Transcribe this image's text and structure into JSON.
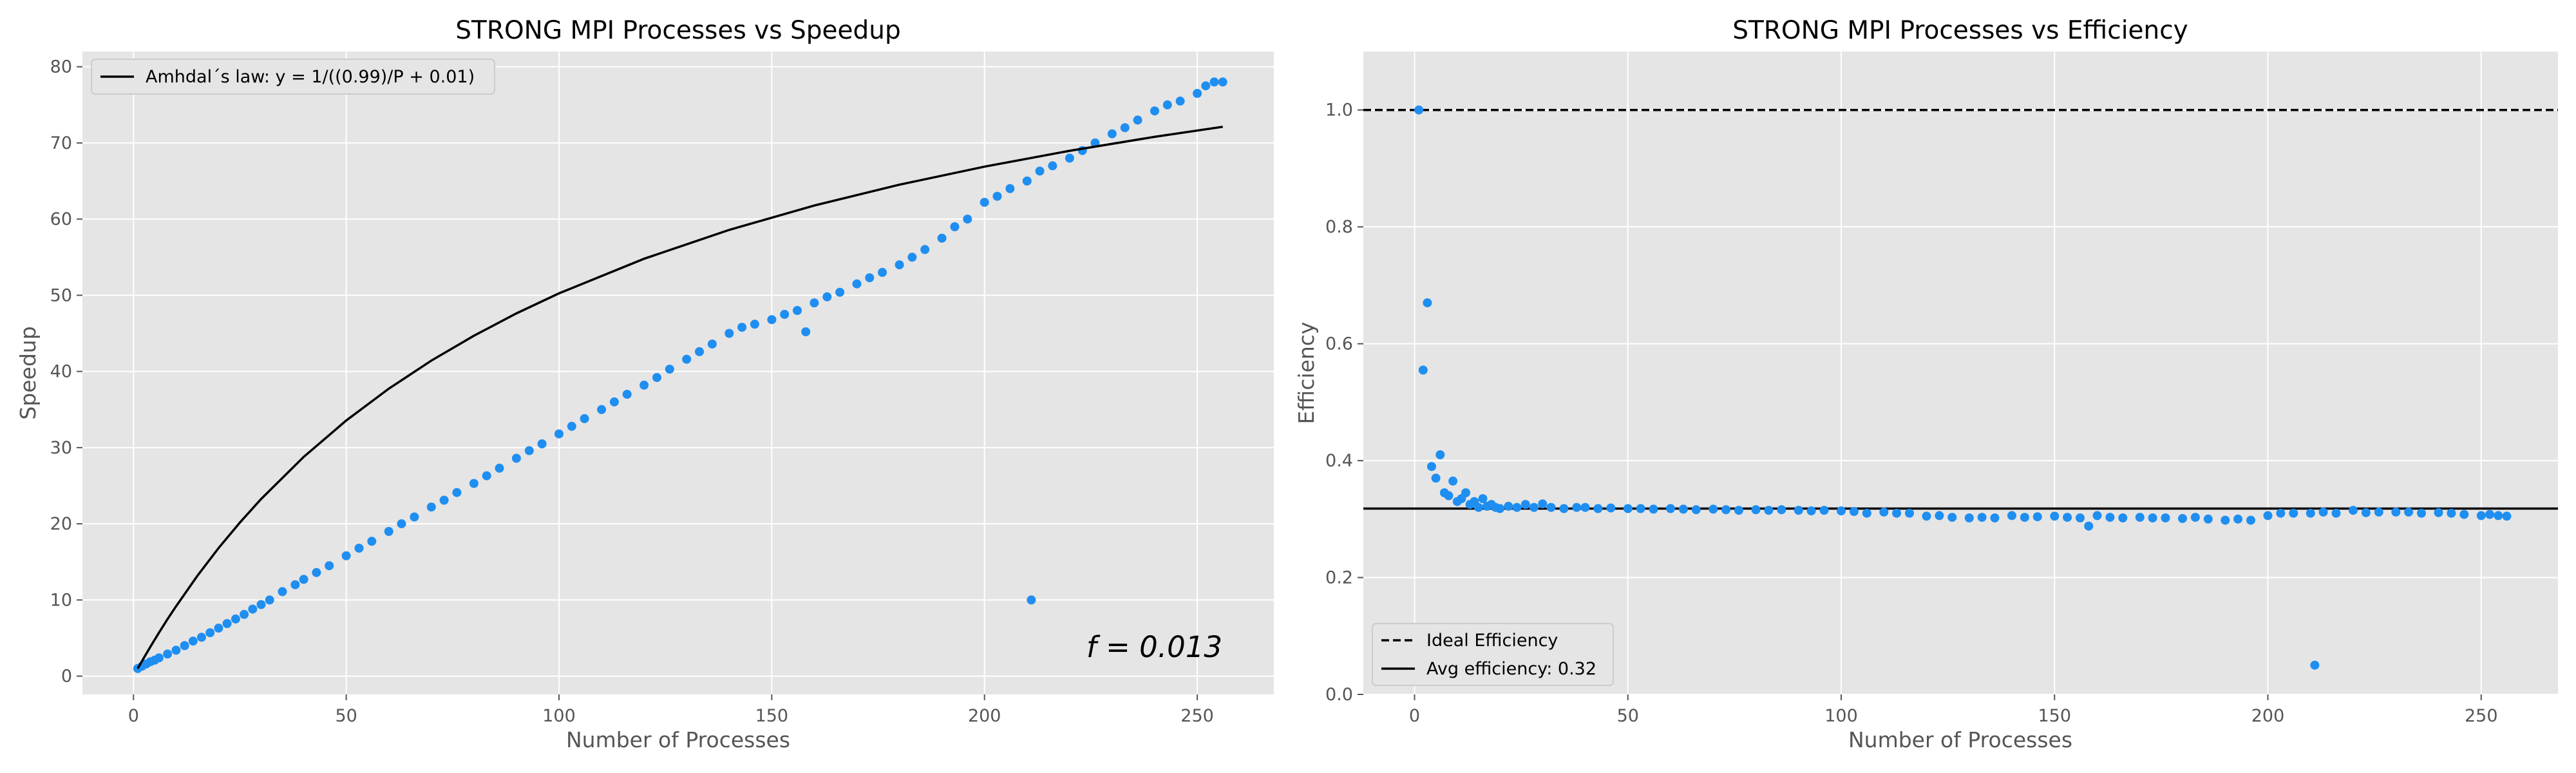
{
  "chart_data": [
    {
      "type": "scatter",
      "title": "STRONG MPI Processes vs Speedup",
      "xlabel": "Number of Processes",
      "ylabel": "Speedup",
      "xlim": [
        -12,
        268
      ],
      "ylim": [
        -2.4,
        82
      ],
      "xticks": [
        0,
        50,
        100,
        150,
        200,
        250
      ],
      "yticks": [
        0,
        10,
        20,
        30,
        40,
        50,
        60,
        70,
        80
      ],
      "grid": true,
      "legend": {
        "placement": "top-left",
        "entries": [
          {
            "label": "Amhdal´s law: y = 1/((0.99)/P + 0.01)",
            "style": "solid",
            "color": "#000000"
          }
        ]
      },
      "annotation": {
        "text": "f = 0.013",
        "placement": "bottom-right"
      },
      "series": [
        {
          "type": "scatter",
          "color": "#1f8ef1",
          "x": [
            1,
            2,
            3,
            4,
            5,
            6,
            8,
            10,
            12,
            14,
            16,
            18,
            20,
            22,
            24,
            26,
            28,
            30,
            32,
            35,
            38,
            40,
            43,
            46,
            50,
            53,
            56,
            60,
            63,
            66,
            70,
            73,
            76,
            80,
            83,
            86,
            90,
            93,
            96,
            100,
            103,
            106,
            110,
            113,
            116,
            120,
            123,
            126,
            130,
            133,
            136,
            140,
            143,
            146,
            150,
            153,
            156,
            158,
            160,
            163,
            166,
            170,
            173,
            176,
            180,
            183,
            186,
            190,
            193,
            196,
            200,
            203,
            206,
            210,
            211,
            213,
            216,
            220,
            223,
            226,
            230,
            233,
            236,
            240,
            243,
            246,
            250,
            252,
            254,
            256
          ],
          "y": [
            1.0,
            1.3,
            1.6,
            1.9,
            2.1,
            2.4,
            2.9,
            3.4,
            4.0,
            4.6,
            5.1,
            5.7,
            6.3,
            6.9,
            7.5,
            8.1,
            8.8,
            9.4,
            10.0,
            11.1,
            12.0,
            12.7,
            13.6,
            14.5,
            15.8,
            16.8,
            17.7,
            19.0,
            20.0,
            20.9,
            22.2,
            23.1,
            24.1,
            25.3,
            26.3,
            27.3,
            28.6,
            29.6,
            30.5,
            31.8,
            32.8,
            33.8,
            35.0,
            36.0,
            37.0,
            38.2,
            39.2,
            40.3,
            41.6,
            42.6,
            43.6,
            45.0,
            45.8,
            46.2,
            46.8,
            47.5,
            48.0,
            45.2,
            49.0,
            49.8,
            50.4,
            51.5,
            52.3,
            53.0,
            54.0,
            55.0,
            56.0,
            57.5,
            59.0,
            60.0,
            62.2,
            63.0,
            64.0,
            65.0,
            10.0,
            66.3,
            67.0,
            68.0,
            69.0,
            70.0,
            71.2,
            72.0,
            73.0,
            74.2,
            75.0,
            75.5,
            76.5,
            77.5,
            78.0,
            78.0
          ]
        },
        {
          "type": "line",
          "name": "Amhdal´s law: y = 1/((0.99)/P + 0.01)",
          "color": "#000000",
          "x": [
            1,
            2,
            4,
            6,
            8,
            10,
            15,
            20,
            25,
            30,
            40,
            50,
            60,
            70,
            80,
            90,
            100,
            120,
            140,
            160,
            180,
            200,
            220,
            240,
            256
          ],
          "y": [
            1.0,
            1.98,
            3.88,
            5.71,
            7.48,
            9.17,
            13.16,
            16.81,
            20.16,
            23.26,
            28.78,
            33.56,
            37.74,
            41.42,
            44.69,
            47.62,
            50.25,
            54.79,
            58.58,
            61.78,
            64.52,
            66.89,
            68.97,
            70.8,
            72.12
          ]
        }
      ]
    },
    {
      "type": "scatter",
      "title": "STRONG MPI Processes vs Efficiency",
      "xlabel": "Number of Processes",
      "ylabel": "Efficiency",
      "xlim": [
        -12,
        268
      ],
      "ylim": [
        0.0,
        1.1
      ],
      "xticks": [
        0,
        50,
        100,
        150,
        200,
        250
      ],
      "yticks": [
        0.0,
        0.2,
        0.4,
        0.6,
        0.8,
        1.0
      ],
      "grid": true,
      "legend": {
        "placement": "bottom-left",
        "entries": [
          {
            "label": "Ideal Efficiency",
            "style": "dashed",
            "color": "#000000"
          },
          {
            "label": "Avg efficiency: 0.32",
            "style": "solid",
            "color": "#000000"
          }
        ]
      },
      "hlines": [
        {
          "y": 1.0,
          "style": "dashed"
        },
        {
          "y": 0.318,
          "style": "solid"
        }
      ],
      "series": [
        {
          "type": "scatter",
          "color": "#1f8ef1",
          "x": [
            1,
            2,
            3,
            4,
            5,
            6,
            7,
            8,
            9,
            10,
            11,
            12,
            13,
            14,
            15,
            16,
            17,
            18,
            19,
            20,
            22,
            24,
            26,
            28,
            30,
            32,
            35,
            38,
            40,
            43,
            46,
            50,
            53,
            56,
            60,
            63,
            66,
            70,
            73,
            76,
            80,
            83,
            86,
            90,
            93,
            96,
            100,
            103,
            106,
            110,
            113,
            116,
            120,
            123,
            126,
            130,
            133,
            136,
            140,
            143,
            146,
            150,
            153,
            156,
            158,
            160,
            163,
            166,
            170,
            173,
            176,
            180,
            183,
            186,
            190,
            193,
            196,
            200,
            203,
            206,
            210,
            211,
            213,
            216,
            220,
            223,
            226,
            230,
            233,
            236,
            240,
            243,
            246,
            250,
            252,
            254,
            256
          ],
          "y": [
            1.0,
            0.555,
            0.67,
            0.39,
            0.37,
            0.41,
            0.345,
            0.34,
            0.365,
            0.33,
            0.335,
            0.345,
            0.325,
            0.33,
            0.32,
            0.335,
            0.322,
            0.325,
            0.32,
            0.318,
            0.322,
            0.32,
            0.325,
            0.32,
            0.326,
            0.32,
            0.318,
            0.32,
            0.32,
            0.318,
            0.319,
            0.318,
            0.318,
            0.317,
            0.318,
            0.317,
            0.316,
            0.317,
            0.316,
            0.315,
            0.316,
            0.315,
            0.316,
            0.315,
            0.314,
            0.315,
            0.314,
            0.313,
            0.31,
            0.312,
            0.31,
            0.31,
            0.305,
            0.306,
            0.303,
            0.302,
            0.303,
            0.302,
            0.306,
            0.303,
            0.304,
            0.305,
            0.303,
            0.302,
            0.288,
            0.306,
            0.303,
            0.302,
            0.303,
            0.302,
            0.302,
            0.301,
            0.303,
            0.3,
            0.298,
            0.3,
            0.298,
            0.306,
            0.31,
            0.31,
            0.31,
            0.05,
            0.312,
            0.31,
            0.315,
            0.311,
            0.312,
            0.312,
            0.312,
            0.31,
            0.311,
            0.31,
            0.308,
            0.306,
            0.308,
            0.306,
            0.305
          ]
        }
      ]
    }
  ],
  "colors": {
    "figure_bg": "#ffffff",
    "axes_bg": "#e5e5e5",
    "grid": "#ffffff",
    "point": "#1f8ef1",
    "line": "#000000"
  }
}
